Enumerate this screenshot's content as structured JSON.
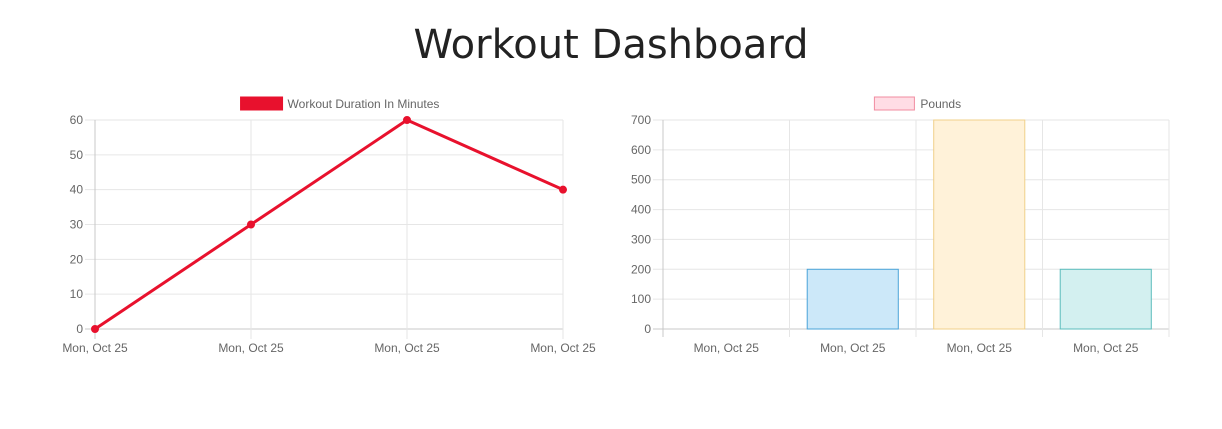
{
  "page": {
    "title": "Workout Dashboard"
  },
  "chart_data": [
    {
      "type": "line",
      "legend_placement": "top",
      "grid": true,
      "x": [
        "Mon, Oct 25",
        "Mon, Oct 25",
        "Mon, Oct 25",
        "Mon, Oct 25"
      ],
      "ylim": [
        0,
        60
      ],
      "yticks": [
        "0",
        "10",
        "20",
        "30",
        "40",
        "50",
        "60"
      ],
      "series": [
        {
          "name": "Workout Duration In Minutes",
          "values": [
            0,
            30,
            60,
            40
          ],
          "color": "#e8112d"
        }
      ]
    },
    {
      "type": "bar",
      "legend_placement": "top",
      "grid": true,
      "categories": [
        "Mon, Oct 25",
        "Mon, Oct 25",
        "Mon, Oct 25",
        "Mon, Oct 25"
      ],
      "ylim": [
        0,
        700
      ],
      "yticks": [
        "0",
        "100",
        "200",
        "300",
        "400",
        "500",
        "600",
        "700"
      ],
      "series": [
        {
          "name": "Pounds",
          "values": [
            0,
            200,
            700,
            200
          ],
          "legend_fill": "#ffdde5",
          "legend_stroke": "#f08ca0",
          "bar_fills": [
            "#ffdde5",
            "#cce8f9",
            "#fff2d9",
            "#d3f0f0"
          ],
          "bar_strokes": [
            "#f08ca0",
            "#4aa3d8",
            "#f0d08a",
            "#5bbcbc"
          ]
        }
      ]
    }
  ]
}
